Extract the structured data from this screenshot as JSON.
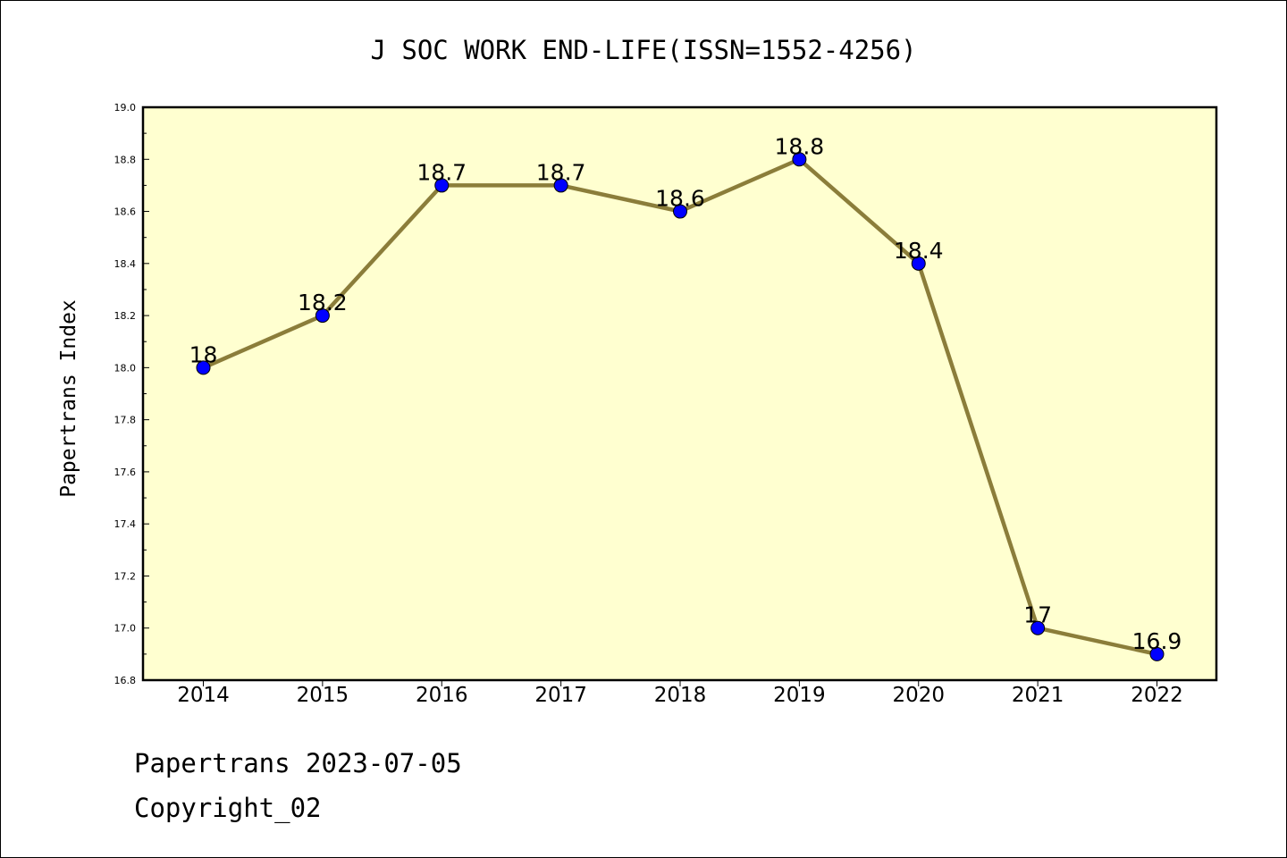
{
  "chart_data": {
    "type": "line",
    "title": "J SOC WORK END-LIFE(ISSN=1552-4256)",
    "xlabel": "",
    "ylabel": "Papertrans Index",
    "categories": [
      "2014",
      "2015",
      "2016",
      "2017",
      "2018",
      "2019",
      "2020",
      "2021",
      "2022"
    ],
    "series": [
      {
        "values": [
          18.0,
          18.2,
          18.7,
          18.7,
          18.6,
          18.8,
          18.4,
          17.0,
          16.9
        ],
        "data_labels": [
          "18",
          "18.2",
          "18.7",
          "18.7",
          "18.6",
          "18.8",
          "18.4",
          "17",
          "16.9"
        ]
      }
    ],
    "ylim": [
      16.8,
      19.0
    ],
    "yticks": [
      "16.8",
      "17.0",
      "17.2",
      "17.4",
      "17.6",
      "17.8",
      "18.0",
      "18.2",
      "18.4",
      "18.6",
      "18.8",
      "19.0"
    ],
    "grid": false,
    "legend": "none",
    "colors": {
      "plot_background": "#FFFFD0",
      "line": "#8B7D3A",
      "marker": "#0000FF"
    }
  },
  "footer": {
    "line1": "Papertrans 2023-07-05",
    "line2": "Copyright_02"
  }
}
